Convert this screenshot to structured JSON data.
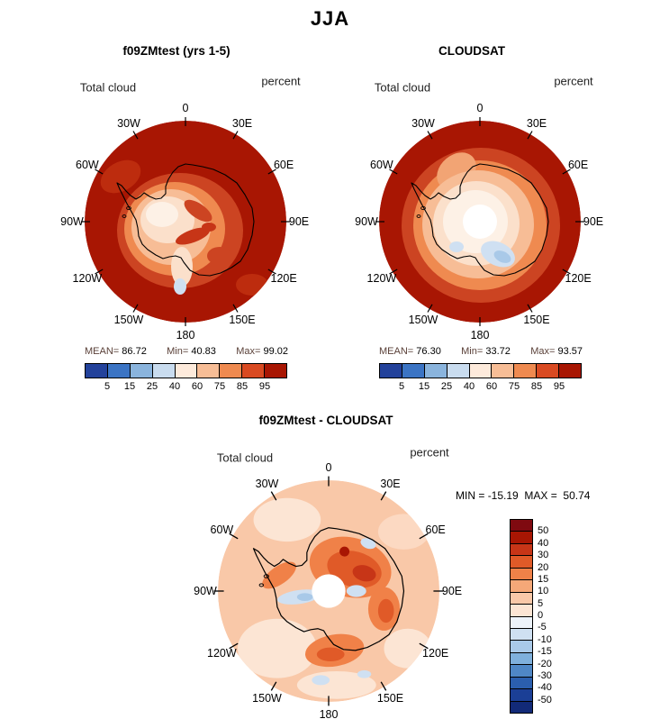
{
  "page_title": "JJA",
  "panels": {
    "model": {
      "title": "f09ZMtest (yrs 1-5)",
      "left_label": "Total cloud",
      "right_label": "percent",
      "stats": {
        "mean_label": "MEAN=",
        "mean": "86.72",
        "min_label": "Min=",
        "min": "40.83",
        "max_label": "Max=",
        "max": "99.02"
      }
    },
    "obs": {
      "title": "CLOUDSAT",
      "left_label": "Total cloud",
      "right_label": "percent",
      "stats": {
        "mean_label": "MEAN=",
        "mean": "76.30",
        "min_label": "Min=",
        "min": "33.72",
        "max_label": "Max=",
        "max": "93.57"
      }
    },
    "diff": {
      "title": "f09ZMtest - CLOUDSAT",
      "left_label": "Total cloud",
      "right_label": "percent",
      "stats": {
        "min_label": "MIN =",
        "min": "-15.19",
        "max_label": "MAX =",
        "max": "50.74"
      }
    }
  },
  "lon_labels": [
    {
      "text": "0",
      "angle": 0
    },
    {
      "text": "30E",
      "angle": 30
    },
    {
      "text": "60E",
      "angle": 60
    },
    {
      "text": "90E",
      "angle": 90
    },
    {
      "text": "120E",
      "angle": 120
    },
    {
      "text": "150E",
      "angle": 150
    },
    {
      "text": "180",
      "angle": 180
    },
    {
      "text": "150W",
      "angle": 210
    },
    {
      "text": "120W",
      "angle": 240
    },
    {
      "text": "90W",
      "angle": 270
    },
    {
      "text": "60W",
      "angle": 300
    },
    {
      "text": "30W",
      "angle": 330
    }
  ],
  "colorbar": {
    "ticks": [
      "5",
      "15",
      "25",
      "40",
      "60",
      "75",
      "85",
      "95"
    ],
    "colors": [
      "#23429b",
      "#3b74c4",
      "#8ab4dd",
      "#c9dcef",
      "#fdeadb",
      "#f7bd96",
      "#ef8a50",
      "#d94a22",
      "#a81603"
    ]
  },
  "diff_colorbar": {
    "labels": [
      "50",
      "40",
      "30",
      "20",
      "15",
      "10",
      "5",
      "0",
      "-5",
      "-10",
      "-15",
      "-20",
      "-30",
      "-40",
      "-50"
    ],
    "colors": [
      "#7f0a10",
      "#a81603",
      "#c73517",
      "#e05a28",
      "#f08148",
      "#f5a878",
      "#f9c8a8",
      "#fce5d4",
      "#edf3fa",
      "#cfe0f2",
      "#a9c9e8",
      "#7fb0dc",
      "#4f87c6",
      "#2b5fae",
      "#1b3f96",
      "#122a78"
    ]
  },
  "chart_data": {
    "type": "heatmap",
    "title": "JJA",
    "variable": "Total cloud",
    "units": "percent",
    "projection": "south-polar-stereographic",
    "longitude_labels": [
      "0",
      "30E",
      "60E",
      "90E",
      "120E",
      "150E",
      "180",
      "150W",
      "120W",
      "90W",
      "60W",
      "30W"
    ],
    "panels": [
      {
        "name": "f09ZMtest (yrs 1-5)",
        "mean": 86.72,
        "min": 40.83,
        "max": 99.02,
        "contour_levels": [
          5,
          15,
          25,
          40,
          60,
          75,
          85,
          95
        ]
      },
      {
        "name": "CLOUDSAT",
        "mean": 76.3,
        "min": 33.72,
        "max": 93.57,
        "contour_levels": [
          5,
          15,
          25,
          40,
          60,
          75,
          85,
          95
        ]
      },
      {
        "name": "f09ZMtest - CLOUDSAT",
        "min": -15.19,
        "max": 50.74,
        "contour_levels": [
          -50,
          -40,
          -30,
          -20,
          -15,
          -10,
          -5,
          0,
          5,
          10,
          15,
          20,
          30,
          40,
          50
        ]
      }
    ],
    "legend_position": "below-each-map-and-right-vertical-for-difference",
    "grid": false
  }
}
